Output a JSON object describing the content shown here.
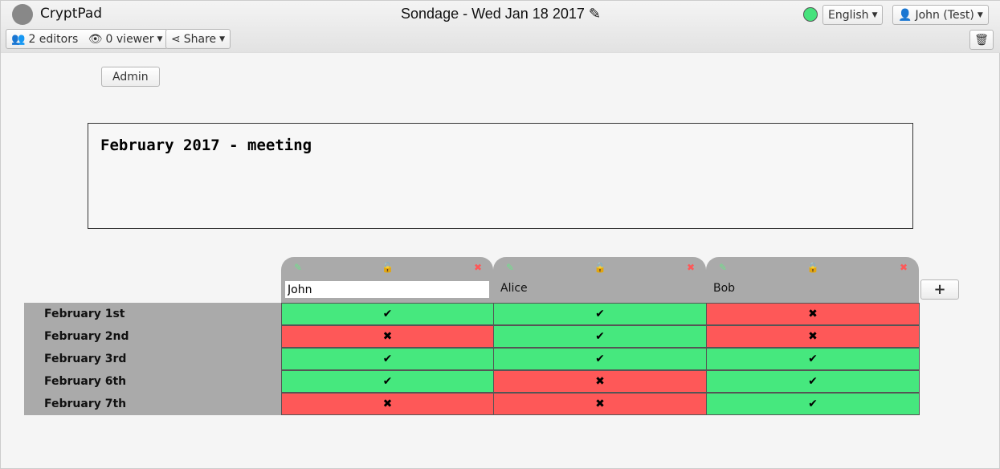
{
  "app": {
    "name": "CryptPad",
    "title": "Sondage - Wed Jan 18 2017"
  },
  "toolbar": {
    "editors": "2 editors",
    "viewers": "0 viewer",
    "share": "Share",
    "language": "English",
    "user": "John (Test)"
  },
  "colors": {
    "yes": "#46e87e",
    "no": "#fe5858",
    "status": "#46e27c"
  },
  "admin_label": "Admin",
  "description": "February 2017 - meeting",
  "poll": {
    "columns": [
      {
        "name": "John",
        "locked": false,
        "editing": true
      },
      {
        "name": "Alice",
        "locked": true
      },
      {
        "name": "Bob",
        "locked": true
      }
    ],
    "rows": [
      "February 1st",
      "February 2nd",
      "February 3rd",
      "February 6th",
      "February 7th"
    ],
    "votes": [
      [
        true,
        true,
        false
      ],
      [
        false,
        true,
        false
      ],
      [
        true,
        true,
        true
      ],
      [
        true,
        false,
        true
      ],
      [
        false,
        false,
        true
      ]
    ],
    "yes_symbol": "✔",
    "no_symbol": "✖",
    "add_symbol": "+"
  }
}
